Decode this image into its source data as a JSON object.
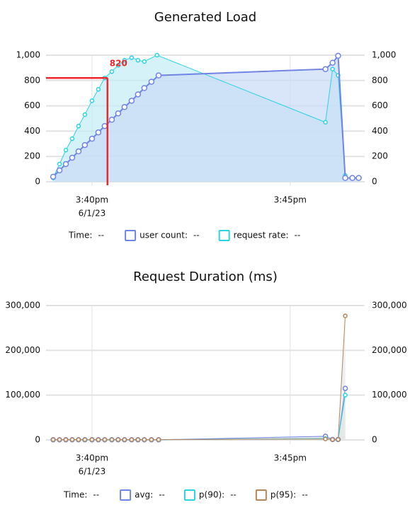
{
  "chart_data": [
    {
      "type": "line",
      "title": "Generated Load",
      "xlim": [
        38.84,
        46.88
      ],
      "xticks": [
        {
          "value": 40,
          "label": "3:40pm",
          "sublabel": "6/1/23"
        },
        {
          "value": 45,
          "label": "3:45pm"
        }
      ],
      "ylim": [
        0,
        1000
      ],
      "yticks": [
        0,
        200,
        400,
        600,
        800,
        {
          "value": 1000,
          "label": "1,000"
        }
      ],
      "y2lim": [
        0,
        1000
      ],
      "y2ticks": [
        0,
        200,
        400,
        600,
        800,
        {
          "value": 1000,
          "label": "1,000"
        }
      ],
      "grid": true,
      "crosshair": {
        "x": 40.39,
        "y": 820,
        "color": "#f0262c"
      },
      "legend": {
        "time": "Time:",
        "time_value": "--"
      },
      "series": [
        {
          "name": "request rate:",
          "legend_value": "--",
          "color": "#29d3e6",
          "fill": "#c4ecf6",
          "axis": "y2",
          "marker": 2.5,
          "x": [
            39.02,
            39.18,
            39.34,
            39.5,
            39.66,
            39.82,
            40,
            40.16,
            40.32,
            40.5,
            40.66,
            40.82,
            41,
            41.16,
            41.32,
            41.64,
            45.89,
            46.07,
            46.21,
            46.39
          ],
          "values": [
            30,
            140,
            250,
            340,
            440,
            530,
            640,
            730,
            820,
            870,
            920,
            960,
            980,
            960,
            950,
            1000,
            470,
            890,
            840,
            50
          ]
        },
        {
          "name": "user count:",
          "legend_value": "--",
          "color": "#6f84e6",
          "fill": "#c9dcf6",
          "marker": 3.5,
          "x": [
            39.02,
            39.18,
            39.34,
            39.5,
            39.66,
            39.82,
            40,
            40.16,
            40.32,
            40.5,
            40.66,
            40.82,
            41,
            41.16,
            41.32,
            41.5,
            41.68,
            45.89,
            46.07,
            46.21,
            46.39,
            46.57,
            46.73
          ],
          "values": [
            40,
            90,
            140,
            190,
            240,
            290,
            340,
            390,
            440,
            490,
            540,
            590,
            640,
            690,
            740,
            790,
            840,
            890,
            940,
            995,
            30,
            30,
            30
          ]
        }
      ]
    },
    {
      "type": "line",
      "title": "Request Duration (ms)",
      "xlim": [
        38.84,
        46.88
      ],
      "xticks": [
        {
          "value": 40,
          "label": "3:40pm",
          "sublabel": "6/1/23"
        },
        {
          "value": 45,
          "label": "3:45pm"
        }
      ],
      "ylim": [
        0,
        300000
      ],
      "yticks": [
        0,
        {
          "value": 100000,
          "label": "100,000"
        },
        {
          "value": 200000,
          "label": "200,000"
        },
        {
          "value": 300000,
          "label": "300,000"
        }
      ],
      "y2lim": [
        0,
        300000
      ],
      "y2ticks": [
        0,
        {
          "value": 100000,
          "label": "100,000"
        },
        {
          "value": 200000,
          "label": "200,000"
        },
        {
          "value": 300000,
          "label": "300,000"
        }
      ],
      "grid": true,
      "legend": {
        "time": "Time:",
        "time_value": "--"
      },
      "series": [
        {
          "name": "avg:",
          "legend_value": "--",
          "color": "#6f84e6",
          "fill": "#dcdcdc",
          "marker": 3,
          "x": [
            39.02,
            39.18,
            39.34,
            39.5,
            39.66,
            39.82,
            40,
            40.16,
            40.32,
            40.5,
            40.66,
            40.82,
            41,
            41.16,
            41.32,
            41.5,
            41.68,
            45.89,
            46.07,
            46.21,
            46.39
          ],
          "values": [
            300,
            300,
            300,
            300,
            300,
            300,
            300,
            300,
            300,
            300,
            300,
            300,
            300,
            300,
            300,
            300,
            300,
            8000,
            1000,
            1000,
            115000
          ]
        },
        {
          "name": "p(90):",
          "legend_value": "--",
          "color": "#29d3e6",
          "fill": "#e4e4e4",
          "marker": 2.5,
          "x": [
            39.02,
            39.18,
            39.34,
            39.5,
            39.66,
            39.82,
            40,
            40.16,
            40.32,
            40.5,
            40.66,
            40.82,
            41,
            41.16,
            41.32,
            41.5,
            41.68,
            45.89,
            46.07,
            46.21,
            46.39
          ],
          "values": [
            400,
            400,
            400,
            400,
            400,
            400,
            400,
            400,
            400,
            400,
            400,
            400,
            400,
            400,
            400,
            400,
            400,
            3000,
            1000,
            1000,
            100000
          ]
        },
        {
          "name": "p(95):",
          "legend_value": "--",
          "color": "#b8865a",
          "fill": "#e8e8e8",
          "marker": 2.5,
          "x": [
            39.02,
            39.18,
            39.34,
            39.5,
            39.66,
            39.82,
            40,
            40.16,
            40.32,
            40.5,
            40.66,
            40.82,
            41,
            41.16,
            41.32,
            41.5,
            41.68,
            45.89,
            46.07,
            46.21,
            46.39
          ],
          "values": [
            500,
            500,
            500,
            500,
            500,
            500,
            500,
            500,
            500,
            500,
            500,
            500,
            500,
            500,
            500,
            500,
            500,
            2000,
            1000,
            1000,
            277000
          ]
        }
      ]
    }
  ]
}
